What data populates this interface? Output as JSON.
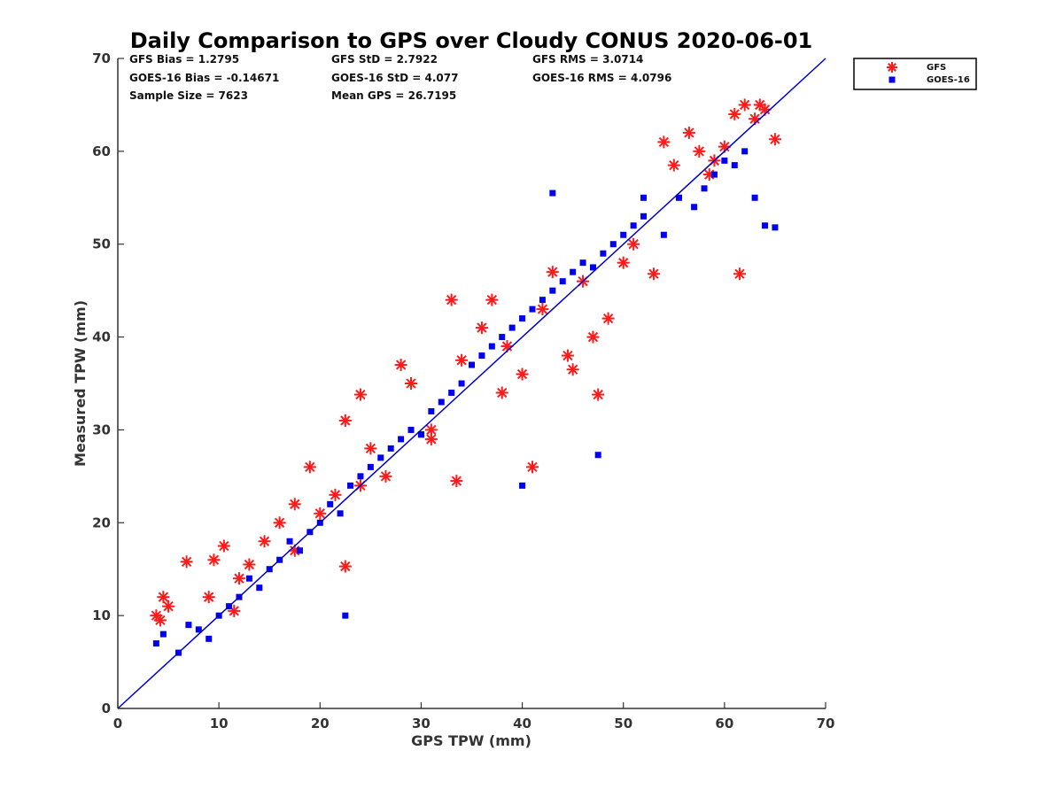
{
  "chart_data": {
    "type": "scatter",
    "title": "Daily Comparison to GPS over Cloudy CONUS 2020-06-01",
    "xlabel": "GPS TPW (mm)",
    "ylabel": "Measured TPW (mm)",
    "xlim": [
      0,
      70
    ],
    "ylim": [
      0,
      70
    ],
    "xticks": [
      "0",
      "10",
      "20",
      "30",
      "40",
      "50",
      "60",
      "70"
    ],
    "yticks": [
      "0",
      "10",
      "20",
      "30",
      "40",
      "50",
      "60",
      "70"
    ],
    "grid": false,
    "legend_position": "outside-top-right",
    "reference_line": {
      "x": [
        0,
        70
      ],
      "y": [
        0,
        70
      ],
      "color": "#0000cc"
    },
    "stats": [
      "GFS Bias = 1.2795",
      "GFS StD = 2.7922",
      "GFS RMS = 3.0714",
      "GOES-16 Bias = -0.14671",
      "GOES-16 StD = 4.077",
      "GOES-16 RMS = 4.0796",
      "Sample Size = 7623",
      "Mean GPS = 26.7195"
    ],
    "series": [
      {
        "name": "GFS",
        "marker": "asterisk",
        "color": "#ff1a1a",
        "x": [
          3.8,
          4.5,
          5.0,
          4.2,
          6.8,
          9.5,
          10.5,
          12.0,
          13.0,
          14.5,
          16.0,
          17.5,
          19.0,
          20.0,
          21.5,
          22.5,
          24.0,
          25.0,
          26.5,
          28.0,
          29.0,
          31.0,
          33.0,
          34.0,
          36.0,
          37.0,
          38.5,
          40.0,
          42.0,
          43.0,
          44.5,
          46.0,
          47.0,
          48.5,
          50.0,
          51.0,
          53.0,
          54.0,
          55.0,
          56.5,
          57.5,
          58.5,
          59.0,
          60.0,
          61.0,
          62.0,
          63.0,
          63.5,
          64.0,
          65.0,
          61.5,
          47.5,
          41.0,
          33.5,
          22.5,
          9.0,
          11.5,
          17.5,
          24.0,
          31.0,
          38.0,
          45.0
        ],
        "y": [
          10.0,
          12.0,
          11.0,
          9.5,
          15.8,
          16.0,
          17.5,
          14.0,
          15.5,
          18.0,
          20.0,
          22.0,
          26.0,
          21.0,
          23.0,
          31.0,
          33.8,
          28.0,
          25.0,
          37.0,
          35.0,
          29.0,
          44.0,
          37.5,
          41.0,
          44.0,
          39.0,
          36.0,
          43.0,
          47.0,
          38.0,
          46.0,
          40.0,
          42.0,
          48.0,
          50.0,
          46.8,
          61.0,
          58.5,
          62.0,
          60.0,
          57.5,
          59.0,
          60.5,
          64.0,
          65.0,
          63.5,
          65.0,
          64.5,
          61.3,
          46.8,
          33.8,
          26.0,
          24.5,
          15.3,
          12.0,
          10.5,
          17.0,
          24.0,
          30.0,
          34.0,
          36.5
        ]
      },
      {
        "name": "GOES-16",
        "marker": "square",
        "color": "#0000ee",
        "x": [
          3.8,
          4.5,
          6.0,
          7.0,
          8.0,
          9.0,
          10.0,
          11.0,
          12.0,
          13.0,
          14.0,
          15.0,
          16.0,
          17.0,
          18.0,
          19.0,
          20.0,
          21.0,
          22.0,
          23.0,
          24.0,
          25.0,
          26.0,
          27.0,
          28.0,
          29.0,
          30.0,
          31.0,
          32.0,
          33.0,
          34.0,
          35.0,
          36.0,
          37.0,
          38.0,
          39.0,
          40.0,
          41.0,
          42.0,
          43.0,
          44.0,
          45.0,
          46.0,
          47.0,
          48.0,
          49.0,
          50.0,
          51.0,
          52.0,
          54.0,
          55.5,
          57.0,
          58.0,
          59.0,
          60.0,
          61.0,
          62.0,
          63.0,
          64.0,
          65.0,
          43.0,
          52.0,
          47.5,
          40.0,
          22.5,
          30.0
        ],
        "y": [
          7.0,
          8.0,
          6.0,
          9.0,
          8.5,
          7.5,
          10.0,
          11.0,
          12.0,
          14.0,
          13.0,
          15.0,
          16.0,
          18.0,
          17.0,
          19.0,
          20.0,
          22.0,
          21.0,
          24.0,
          25.0,
          26.0,
          27.0,
          28.0,
          29.0,
          30.0,
          29.5,
          32.0,
          33.0,
          34.0,
          35.0,
          37.0,
          38.0,
          39.0,
          40.0,
          41.0,
          42.0,
          43.0,
          44.0,
          45.0,
          46.0,
          47.0,
          48.0,
          47.5,
          49.0,
          50.0,
          51.0,
          52.0,
          53.0,
          51.0,
          55.0,
          54.0,
          56.0,
          57.5,
          59.0,
          58.5,
          60.0,
          55.0,
          52.0,
          51.8,
          55.5,
          55.0,
          27.3,
          24.0,
          10.0,
          29.5
        ]
      }
    ]
  }
}
